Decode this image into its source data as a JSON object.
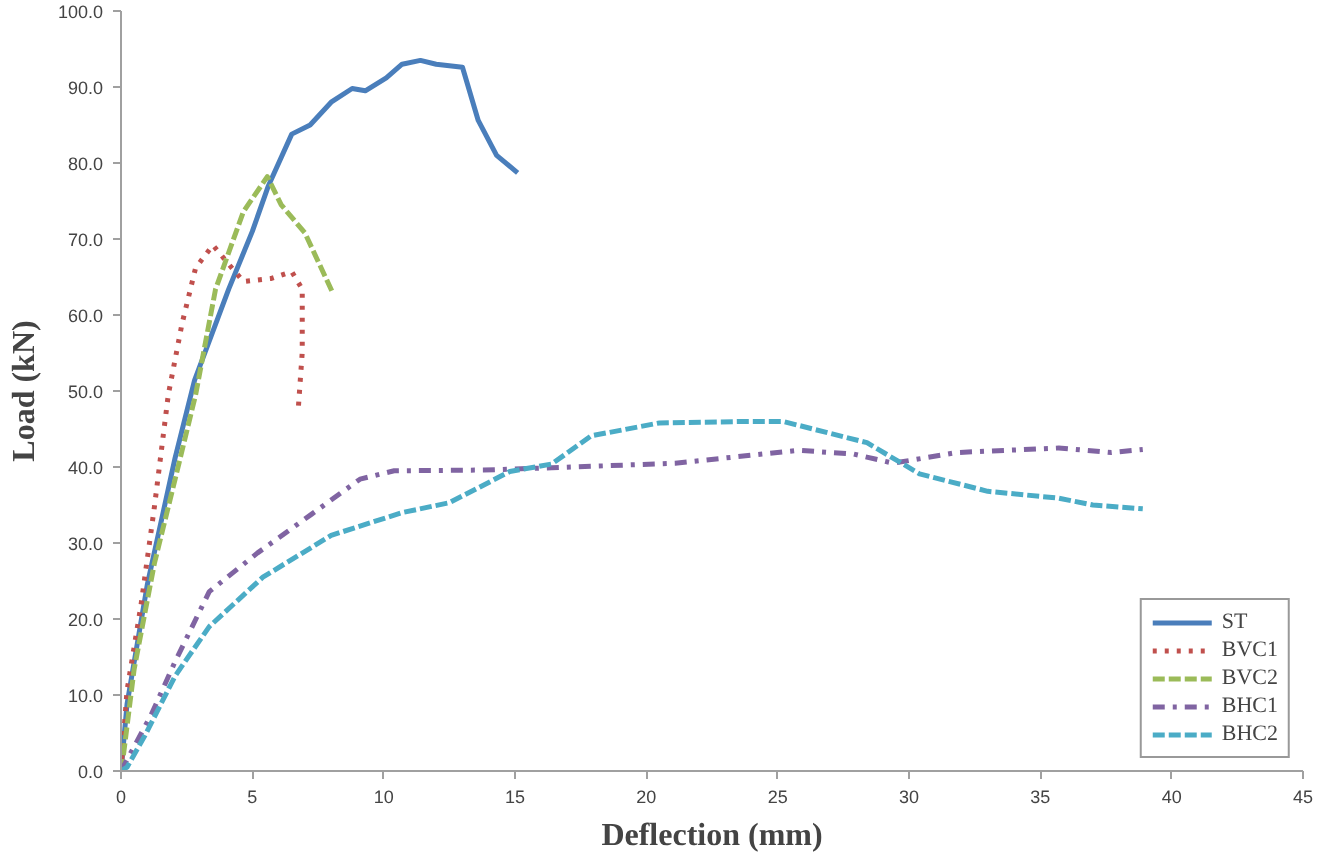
{
  "chart_data": {
    "type": "line",
    "xlabel": "Deflection (mm)",
    "ylabel": "Load (kN)",
    "xlim": [
      0,
      45
    ],
    "xticks": [
      0,
      5,
      10,
      15,
      20,
      25,
      30,
      35,
      40,
      45
    ],
    "ylim": [
      0,
      100
    ],
    "yticks": [
      {
        "value": 0,
        "label": "0.0"
      },
      {
        "value": 10,
        "label": "10.0"
      },
      {
        "value": 20,
        "label": "20.0"
      },
      {
        "value": 30,
        "label": "30.0"
      },
      {
        "value": 40,
        "label": "40.0"
      },
      {
        "value": 50,
        "label": "50.0"
      },
      {
        "value": 60,
        "label": "60.0"
      },
      {
        "value": 70,
        "label": "70.0"
      },
      {
        "value": 80,
        "label": "80.0"
      },
      {
        "value": 90,
        "label": "90.0"
      },
      {
        "value": 100,
        "label": "100.0"
      }
    ],
    "grid": false,
    "legend": "bottom right",
    "marker": "none",
    "series": [
      {
        "name": "ST",
        "color": "#4a7ebb",
        "line_style": "solid",
        "x": [
          0,
          0.23,
          1.0,
          2.06,
          2.8,
          4.1,
          5.0,
          5.6,
          6.5,
          7.2,
          8.0,
          8.8,
          9.3,
          10.1,
          10.7,
          11.4,
          12.0,
          13.0,
          13.6,
          14.3,
          15.1
        ],
        "values": [
          0,
          8.8,
          24.5,
          41.2,
          51.4,
          63.4,
          71,
          76.9,
          83.8,
          85,
          88,
          89.8,
          89.5,
          91.2,
          93,
          93.5,
          93,
          92.6,
          85.6,
          81,
          78.7
        ]
      },
      {
        "name": "BVC1",
        "color": "#c0504d",
        "line_style": "dotted",
        "x": [
          0,
          0.23,
          0.76,
          1.27,
          1.8,
          2.32,
          2.84,
          3.5,
          4.0,
          4.66,
          5.7,
          6.5,
          6.9,
          6.9,
          6.75
        ],
        "values": [
          0,
          10.6,
          21.8,
          34.7,
          49.5,
          58.8,
          66.2,
          69.2,
          67.1,
          64.4,
          64.8,
          65.7,
          63.4,
          55.1,
          47.7
        ]
      },
      {
        "name": "BVC2",
        "color": "#9bbb59",
        "line_style": "dashed",
        "x": [
          0,
          0.1,
          0.5,
          1.27,
          2.06,
          2.84,
          3.6,
          4.66,
          5.57,
          6.1,
          7.0,
          8.05
        ],
        "values": [
          0,
          2.3,
          13.4,
          27.3,
          38.4,
          49.5,
          63.4,
          73.6,
          78.2,
          74.5,
          70.8,
          63
        ]
      },
      {
        "name": "BHC1",
        "color": "#8064a2",
        "line_style": "dashdot",
        "x": [
          0,
          1.15,
          2.06,
          3.36,
          5.2,
          7.26,
          9.1,
          10.4,
          13.8,
          16.4,
          21.1,
          25.8,
          27.9,
          29.4,
          31.8,
          35.7,
          37.7,
          38.9
        ],
        "values": [
          0,
          7.4,
          14.4,
          23.6,
          28.7,
          33.8,
          38.4,
          39.5,
          39.6,
          39.9,
          40.5,
          42.2,
          41.7,
          40.5,
          41.9,
          42.5,
          41.9,
          42.3
        ]
      },
      {
        "name": "BHC2",
        "color": "#4bacc6",
        "line_style": "dashed",
        "x": [
          0,
          0.23,
          0.9,
          2.06,
          3.36,
          5.4,
          8.0,
          10.7,
          12.5,
          14.8,
          16.4,
          17.9,
          20.5,
          23.9,
          25.2,
          28.4,
          30.4,
          33.0,
          35.7,
          37.0,
          38.9
        ],
        "values": [
          0,
          0.5,
          4.6,
          12.5,
          19,
          25.5,
          31,
          34,
          35.3,
          39.4,
          40.4,
          44.1,
          45.8,
          46,
          46,
          43.2,
          39.1,
          36.8,
          35.9,
          35,
          34.5
        ]
      }
    ]
  }
}
